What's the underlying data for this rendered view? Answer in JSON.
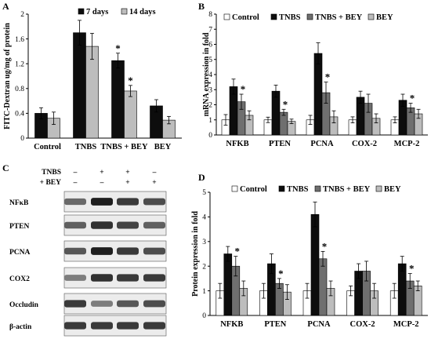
{
  "colors": {
    "black": "#0d0d0d",
    "dark_gray": "#6f6f6f",
    "light_gray": "#bdbdbd",
    "white": "#ffffff"
  },
  "chart_data": [
    {
      "panel": "A",
      "type": "bar",
      "categories": [
        "Control",
        "TNBS",
        "TNBS + BEY",
        "BEY"
      ],
      "series": [
        {
          "name": "7 days",
          "values": [
            0.4,
            1.7,
            1.25,
            0.52
          ],
          "errors": [
            0.09,
            0.2,
            0.12,
            0.1
          ]
        },
        {
          "name": "14 days",
          "values": [
            0.32,
            1.48,
            0.76,
            0.29
          ],
          "errors": [
            0.1,
            0.21,
            0.09,
            0.06
          ]
        }
      ],
      "significance": [
        [
          "TNBS + BEY",
          "7 days"
        ],
        [
          "TNBS + BEY",
          "14 days"
        ]
      ],
      "ylabel": "FITC-Dextran ug/mg of protein",
      "ylim": [
        0,
        2.0
      ],
      "yticks": [
        "0",
        "0.4",
        "0.8",
        "1.2",
        "1.6",
        "2"
      ],
      "legend": "top"
    },
    {
      "panel": "B",
      "type": "bar",
      "categories": [
        "NFKB",
        "PTEN",
        "PCNA",
        "COX-2",
        "MCP-2"
      ],
      "series": [
        {
          "name": "Control",
          "values": [
            1.0,
            1.0,
            1.0,
            1.0,
            1.0
          ],
          "errors": [
            0.35,
            0.18,
            0.3,
            0.2,
            0.2
          ]
        },
        {
          "name": "TNBS",
          "values": [
            3.2,
            2.9,
            5.4,
            2.5,
            2.3
          ],
          "errors": [
            0.5,
            0.4,
            0.7,
            0.4,
            0.4
          ]
        },
        {
          "name": "TNBS + BEY",
          "values": [
            2.2,
            1.5,
            2.8,
            2.1,
            1.8
          ],
          "errors": [
            0.5,
            0.2,
            0.7,
            0.6,
            0.3
          ]
        },
        {
          "name": "BEY",
          "values": [
            1.3,
            0.9,
            1.2,
            1.1,
            1.4
          ],
          "errors": [
            0.3,
            0.15,
            0.4,
            0.3,
            0.3
          ]
        }
      ],
      "significance": [
        [
          "NFKB",
          "TNBS + BEY"
        ],
        [
          "PTEN",
          "TNBS + BEY"
        ],
        [
          "PCNA",
          "TNBS + BEY"
        ],
        [
          "MCP-2",
          "TNBS + BEY"
        ]
      ],
      "ylabel": "mRNA expression in fold",
      "ylim": [
        0,
        8
      ],
      "yticks": [
        "0",
        "1",
        "2",
        "3",
        "4",
        "5",
        "6",
        "7",
        "8"
      ],
      "legend": "top"
    },
    {
      "panel": "D",
      "type": "bar",
      "categories": [
        "NFKB",
        "PTEN",
        "PCNA",
        "COX-2",
        "MCP-2"
      ],
      "series": [
        {
          "name": "Control",
          "values": [
            1.0,
            1.0,
            1.0,
            1.0,
            1.0
          ],
          "errors": [
            0.3,
            0.3,
            0.3,
            0.2,
            0.3
          ]
        },
        {
          "name": "TNBS",
          "values": [
            2.5,
            2.1,
            4.1,
            1.8,
            2.1
          ],
          "errors": [
            0.3,
            0.4,
            0.5,
            0.3,
            0.3
          ]
        },
        {
          "name": "TNBS + BEY",
          "values": [
            2.0,
            1.3,
            2.3,
            1.8,
            1.4
          ],
          "errors": [
            0.4,
            0.2,
            0.3,
            0.4,
            0.3
          ]
        },
        {
          "name": "BEY",
          "values": [
            1.1,
            0.95,
            1.1,
            1.0,
            1.2
          ],
          "errors": [
            0.3,
            0.3,
            0.3,
            0.3,
            0.2
          ]
        }
      ],
      "significance": [
        [
          "NFKB",
          "TNBS + BEY"
        ],
        [
          "PTEN",
          "TNBS + BEY"
        ],
        [
          "PCNA",
          "TNBS + BEY"
        ],
        [
          "MCP-2",
          "TNBS + BEY"
        ]
      ],
      "ylabel": "Protein expression in fold",
      "ylim": [
        0,
        5
      ],
      "yticks": [
        "0",
        "1",
        "2",
        "3",
        "4",
        "5"
      ],
      "legend": "top"
    }
  ],
  "western_blot": {
    "panel": "C",
    "row_headers": [
      "TNBS",
      "+ BEY"
    ],
    "lane_signs": [
      [
        "–",
        "+",
        "+",
        "–"
      ],
      [
        "–",
        "–",
        "+",
        "+"
      ]
    ],
    "proteins": [
      "NFκB",
      "PTEN",
      "PCNA",
      "COX2",
      "Occludin",
      "β-actin"
    ],
    "band_intensity": [
      [
        0.55,
        0.95,
        0.8,
        0.7
      ],
      [
        0.6,
        0.85,
        0.75,
        0.6
      ],
      [
        0.65,
        0.95,
        0.8,
        0.7
      ],
      [
        0.45,
        0.85,
        0.8,
        0.8
      ],
      [
        0.8,
        0.45,
        0.65,
        0.7
      ],
      [
        0.8,
        0.8,
        0.8,
        0.8
      ]
    ]
  },
  "star_symbol": "*"
}
